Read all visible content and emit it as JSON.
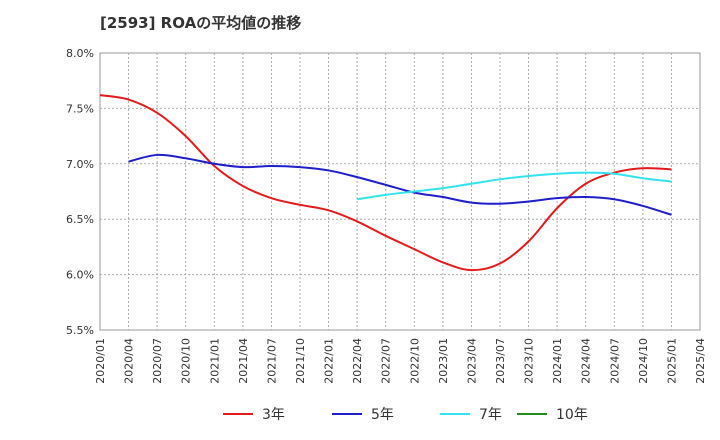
{
  "chart_data": {
    "type": "line",
    "title": "[2593]  ROAの平均値の推移",
    "xlabel": "",
    "ylabel": "",
    "ylim": [
      5.5,
      8.0
    ],
    "y_ticks": [
      "8.0%",
      "7.5%",
      "7.0%",
      "6.5%",
      "6.0%",
      "5.5%"
    ],
    "y_tick_values": [
      8.0,
      7.5,
      7.0,
      6.5,
      6.0,
      5.5
    ],
    "x_ticks": [
      "2020/01",
      "2020/04",
      "2020/07",
      "2020/10",
      "2021/01",
      "2021/04",
      "2021/07",
      "2021/10",
      "2022/01",
      "2022/04",
      "2022/07",
      "2022/10",
      "2023/01",
      "2023/04",
      "2023/07",
      "2023/10",
      "2024/01",
      "2024/04",
      "2024/07",
      "2024/10",
      "2025/01",
      "2025/04"
    ],
    "grid": true,
    "legend_position": "bottom",
    "series": [
      {
        "name": "3年",
        "color": "#e41a1c",
        "points": [
          [
            "2020/01",
            7.62
          ],
          [
            "2020/04",
            7.58
          ],
          [
            "2020/07",
            7.46
          ],
          [
            "2020/10",
            7.25
          ],
          [
            "2021/01",
            6.98
          ],
          [
            "2021/04",
            6.8
          ],
          [
            "2021/07",
            6.69
          ],
          [
            "2021/10",
            6.63
          ],
          [
            "2022/01",
            6.58
          ],
          [
            "2022/04",
            6.48
          ],
          [
            "2022/07",
            6.35
          ],
          [
            "2022/10",
            6.23
          ],
          [
            "2023/01",
            6.11
          ],
          [
            "2023/04",
            6.04
          ],
          [
            "2023/07",
            6.1
          ],
          [
            "2023/10",
            6.3
          ],
          [
            "2024/01",
            6.6
          ],
          [
            "2024/04",
            6.82
          ],
          [
            "2024/07",
            6.92
          ],
          [
            "2024/10",
            6.96
          ],
          [
            "2025/01",
            6.95
          ]
        ]
      },
      {
        "name": "5年",
        "color": "#1f1fcc",
        "points": [
          [
            "2020/04",
            7.02
          ],
          [
            "2020/07",
            7.08
          ],
          [
            "2020/10",
            7.05
          ],
          [
            "2021/01",
            7.0
          ],
          [
            "2021/04",
            6.97
          ],
          [
            "2021/07",
            6.98
          ],
          [
            "2021/10",
            6.97
          ],
          [
            "2022/01",
            6.94
          ],
          [
            "2022/04",
            6.88
          ],
          [
            "2022/07",
            6.81
          ],
          [
            "2022/10",
            6.74
          ],
          [
            "2023/01",
            6.7
          ],
          [
            "2023/04",
            6.65
          ],
          [
            "2023/07",
            6.64
          ],
          [
            "2023/10",
            6.66
          ],
          [
            "2024/01",
            6.69
          ],
          [
            "2024/04",
            6.7
          ],
          [
            "2024/07",
            6.68
          ],
          [
            "2024/10",
            6.62
          ],
          [
            "2025/01",
            6.54
          ]
        ]
      },
      {
        "name": "7年",
        "color": "#33e3f0",
        "points": [
          [
            "2022/04",
            6.68
          ],
          [
            "2022/07",
            6.72
          ],
          [
            "2022/10",
            6.75
          ],
          [
            "2023/01",
            6.78
          ],
          [
            "2023/04",
            6.82
          ],
          [
            "2023/07",
            6.86
          ],
          [
            "2023/10",
            6.89
          ],
          [
            "2024/01",
            6.91
          ],
          [
            "2024/04",
            6.92
          ],
          [
            "2024/07",
            6.91
          ],
          [
            "2024/10",
            6.87
          ],
          [
            "2025/01",
            6.84
          ]
        ]
      },
      {
        "name": "10年",
        "color": "#228b22",
        "points": []
      }
    ]
  }
}
